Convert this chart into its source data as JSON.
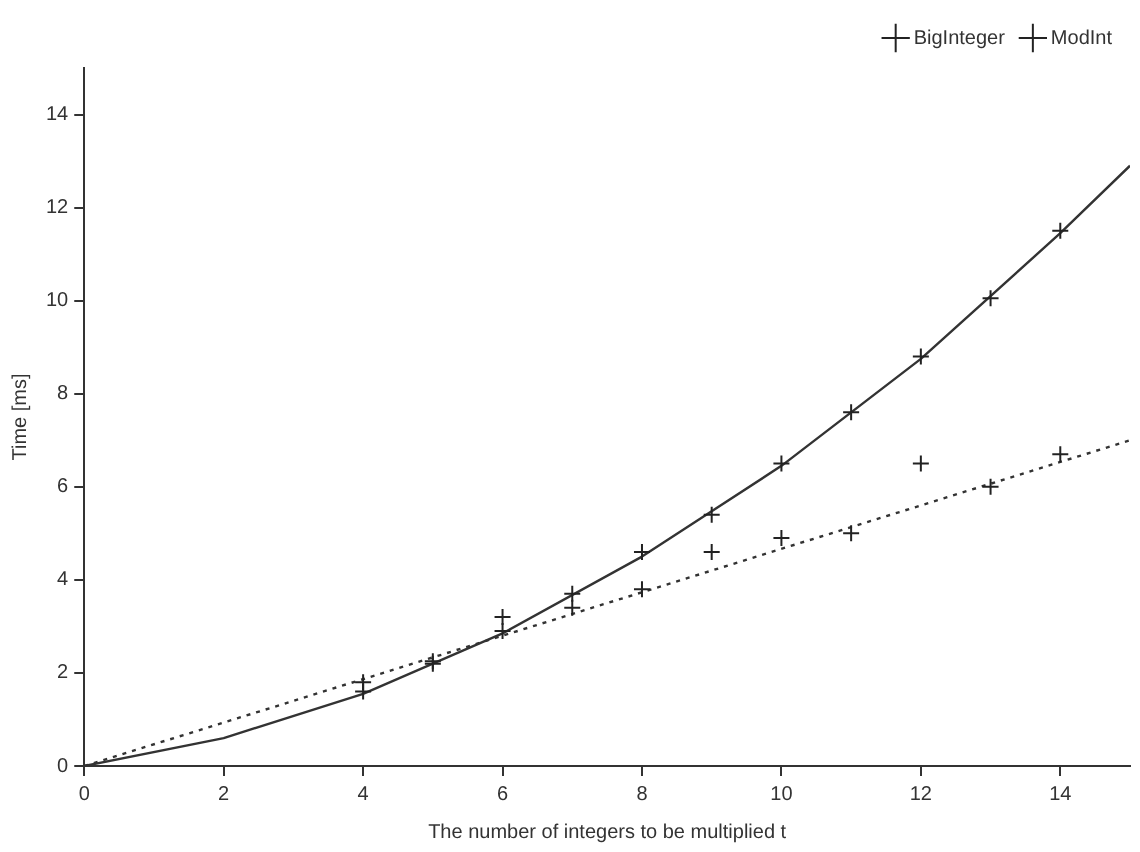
{
  "chart_data": {
    "type": "scatter",
    "xlabel": "The number of integers to be multiplied t",
    "ylabel": "Time [ms]",
    "xlim": [
      0,
      15
    ],
    "ylim": [
      0,
      15
    ],
    "xticks": [
      0,
      2,
      4,
      6,
      8,
      10,
      12,
      14
    ],
    "yticks": [
      0,
      2,
      4,
      6,
      8,
      10,
      12,
      14
    ],
    "grid": false,
    "legend": "top right",
    "series": [
      {
        "name": "BigInteger",
        "type": "scatter",
        "marker": "cross",
        "color": "#222222",
        "x": [
          4,
          5,
          6,
          7,
          8,
          9,
          10,
          11,
          12,
          13,
          14
        ],
        "values": [
          1.6,
          2.2,
          3.2,
          3.7,
          4.6,
          5.4,
          6.5,
          7.6,
          8.8,
          10.05,
          11.5
        ]
      },
      {
        "name": "ModInt",
        "type": "scatter",
        "marker": "cross",
        "color": "#222222",
        "x": [
          4,
          5,
          6,
          7,
          8,
          9,
          10,
          11,
          12,
          13,
          14
        ],
        "values": [
          1.8,
          2.25,
          2.9,
          3.4,
          3.8,
          4.6,
          4.9,
          5.0,
          6.5,
          6.0,
          6.7
        ]
      },
      {
        "type": "line",
        "marker": "none",
        "line_style": "solid",
        "color": "#333333",
        "x": [
          0,
          2,
          4,
          6,
          8,
          10,
          12,
          14,
          15
        ],
        "values": [
          0,
          0.6,
          1.55,
          2.85,
          4.5,
          6.45,
          8.75,
          11.45,
          12.9
        ]
      },
      {
        "type": "line",
        "marker": "none",
        "line_style": "dotted",
        "color": "#333333",
        "x": [
          0,
          15
        ],
        "values": [
          0,
          7.0
        ]
      }
    ]
  }
}
